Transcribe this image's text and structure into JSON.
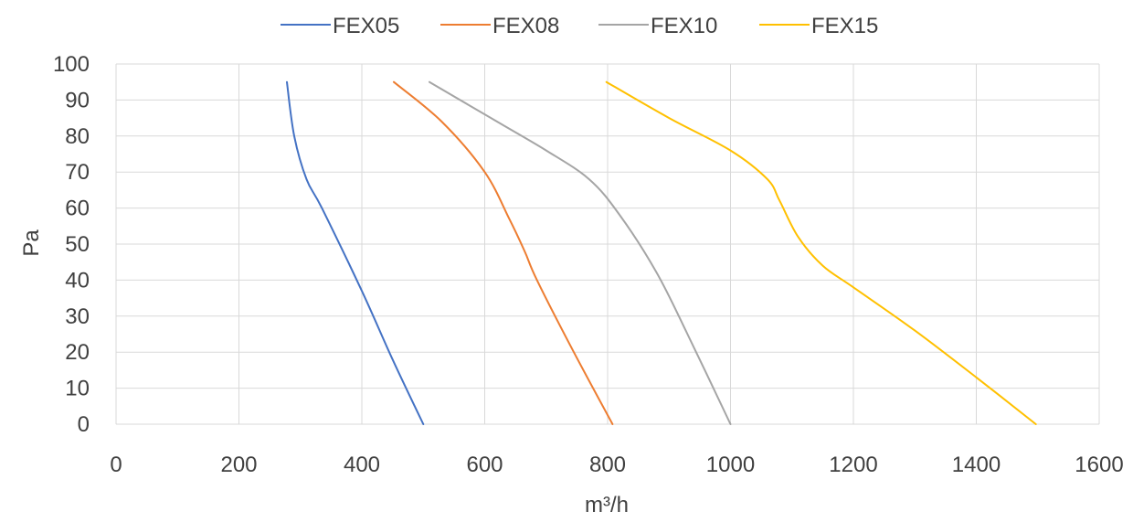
{
  "chart_data": {
    "type": "line",
    "title": "",
    "xlabel": "m³/h",
    "ylabel": "Pa",
    "xlim": [
      0,
      1600
    ],
    "ylim": [
      0,
      100
    ],
    "x_ticks": [
      "0",
      "200",
      "400",
      "600",
      "800",
      "1000",
      "1200",
      "1400",
      "1600"
    ],
    "y_ticks": [
      "0",
      "10",
      "20",
      "30",
      "40",
      "50",
      "60",
      "70",
      "80",
      "90",
      "100"
    ],
    "grid": true,
    "legend_position": "top",
    "series": [
      {
        "name": "FEX05",
        "color": "#4472C4",
        "points": [
          [
            278,
            95
          ],
          [
            290,
            80
          ],
          [
            310,
            68
          ],
          [
            335,
            60
          ],
          [
            400,
            37
          ],
          [
            450,
            18
          ],
          [
            500,
            0
          ]
        ]
      },
      {
        "name": "FEX08",
        "color": "#ED7D31",
        "points": [
          [
            452,
            95
          ],
          [
            530,
            84
          ],
          [
            600,
            70
          ],
          [
            640,
            57
          ],
          [
            665,
            48
          ],
          [
            685,
            40
          ],
          [
            745,
            20
          ],
          [
            808,
            0
          ]
        ]
      },
      {
        "name": "FEX10",
        "color": "#A5A5A5",
        "points": [
          [
            510,
            95
          ],
          [
            620,
            84
          ],
          [
            700,
            76
          ],
          [
            770,
            68
          ],
          [
            820,
            58
          ],
          [
            880,
            42
          ],
          [
            930,
            25
          ],
          [
            1000,
            0
          ]
        ]
      },
      {
        "name": "FEX15",
        "color": "#FFC000",
        "points": [
          [
            798,
            95
          ],
          [
            900,
            85
          ],
          [
            1000,
            76
          ],
          [
            1060,
            68
          ],
          [
            1080,
            62
          ],
          [
            1110,
            52
          ],
          [
            1150,
            44
          ],
          [
            1200,
            38
          ],
          [
            1300,
            26
          ],
          [
            1400,
            13
          ],
          [
            1497,
            0
          ]
        ]
      }
    ]
  }
}
